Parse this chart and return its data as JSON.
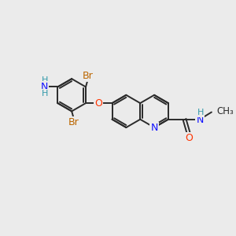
{
  "bg_color": "#ebebeb",
  "bond_color": "#2a2a2a",
  "bond_width": 1.4,
  "N_color": "#1010ff",
  "O_color": "#ff3300",
  "Br_color": "#bb6600",
  "NH2_color": "#3399aa",
  "H_color": "#3399aa",
  "figsize": [
    3.0,
    3.0
  ],
  "dpi": 100,
  "xlim": [
    0,
    10
  ],
  "ylim": [
    0,
    10
  ]
}
